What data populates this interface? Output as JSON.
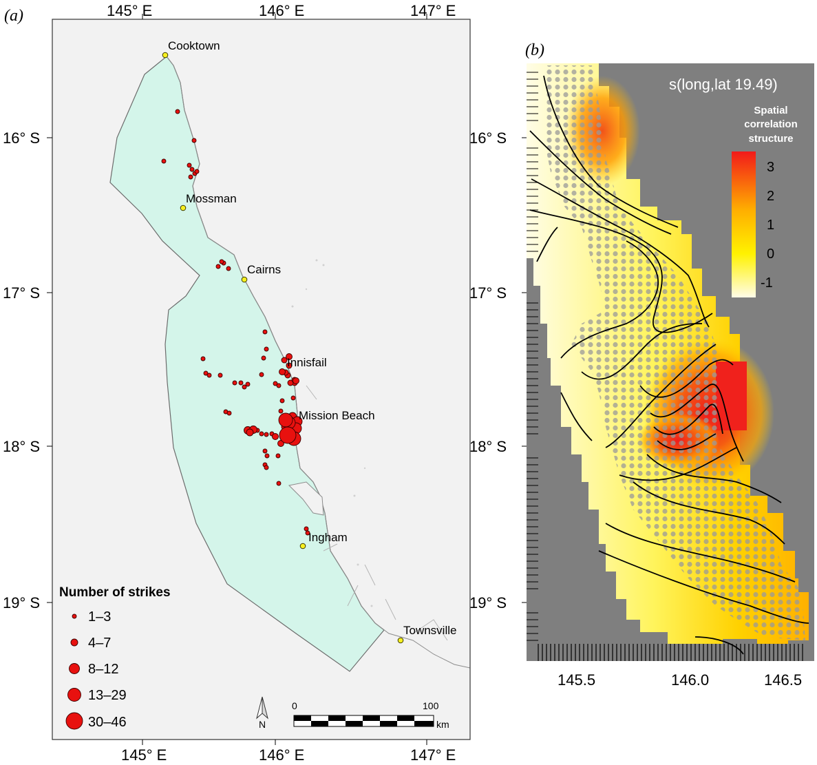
{
  "panel_a": {
    "label": "(a)",
    "lon_ticks": [
      "145° E",
      "146° E",
      "147° E"
    ],
    "lat_ticks": [
      "16° S",
      "17° S",
      "18° S",
      "19° S"
    ],
    "towns": [
      {
        "name": "Cooktown"
      },
      {
        "name": "Mossman"
      },
      {
        "name": "Cairns"
      },
      {
        "name": "Innisfail"
      },
      {
        "name": "Mission Beach"
      },
      {
        "name": "Ingham"
      },
      {
        "name": "Townsville"
      }
    ],
    "legend": {
      "title": "Number of strikes",
      "items": [
        "1–3",
        "4–7",
        "8–12",
        "13–29",
        "30–46"
      ]
    },
    "north_label": "N",
    "scale_bar": {
      "start": "0",
      "end": "100",
      "unit": "km"
    },
    "colors": {
      "region": "#d4f5ea",
      "land": "#f2f2f2",
      "strike": "#e8110f",
      "town": "#f7f021"
    }
  },
  "panel_b": {
    "label": "(b)",
    "title": "s(long,lat 19.49)",
    "legend_title_lines": [
      "Spatial",
      "correlation",
      "structure"
    ],
    "legend_ticks": [
      "3",
      "2",
      "1",
      "0",
      "-1"
    ],
    "lon_ticks": [
      "145.5",
      "146.0",
      "146.5"
    ],
    "lat_ticks": [
      "16° S",
      "17° S",
      "18° S",
      "19° S"
    ],
    "colors": {
      "background": "#7f7f7f",
      "high": "#f21a1a",
      "mid": "#fff200",
      "low": "#fffde8"
    }
  }
}
